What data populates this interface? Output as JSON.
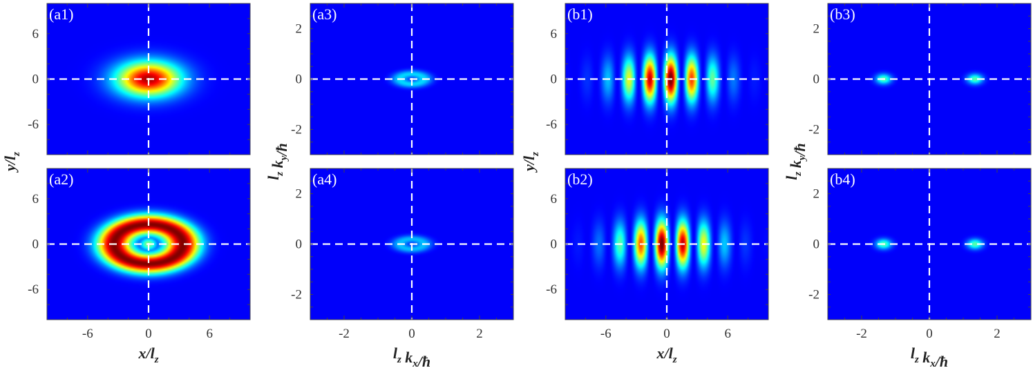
{
  "colors": {
    "background": "#00007f",
    "jet_low": "#0000c8",
    "jet_mid": "#00ffff",
    "jet_high": "#ff0000",
    "jet_peak": "#7f0000",
    "guide_line": "#ffffff"
  },
  "chart_data": [
    {
      "type": "heatmap",
      "label": "(a1)",
      "space": "position",
      "xlim": [
        -10,
        10
      ],
      "ylim": [
        -10,
        10
      ],
      "xticks": [
        "-6",
        "0",
        "6"
      ],
      "yticks": [
        "6",
        "0",
        "-6"
      ],
      "xlabel": "",
      "ylabel": "",
      "density": {
        "shape": "gaussian",
        "center": [
          0,
          0
        ],
        "sigma": [
          2.2,
          1.6
        ],
        "amplitude": 0.95
      }
    },
    {
      "type": "heatmap",
      "label": "(a2)",
      "space": "position",
      "xlim": [
        -10,
        10
      ],
      "ylim": [
        -10,
        10
      ],
      "xticks": [
        "-6",
        "0",
        "6"
      ],
      "yticks": [
        "6",
        "0",
        "-6"
      ],
      "xlabel": "x/l_z",
      "ylabel": "",
      "density": {
        "shape": "ring",
        "center": [
          0,
          0
        ],
        "radius": [
          3.4,
          2.6
        ],
        "width": 1.6,
        "amplitude": 1.0,
        "core": 0.45
      }
    },
    {
      "type": "heatmap",
      "label": "(a3)",
      "space": "momentum",
      "xlim": [
        -3,
        3
      ],
      "ylim": [
        -3,
        3
      ],
      "xticks": [
        "-2",
        "0",
        "2"
      ],
      "yticks": [
        "2",
        "0",
        "-2"
      ],
      "xlabel": "",
      "ylabel": "",
      "density": {
        "shape": "ring",
        "center": [
          0,
          0
        ],
        "radius": [
          0.35,
          0.2
        ],
        "width": 0.22,
        "amplitude": 0.25
      }
    },
    {
      "type": "heatmap",
      "label": "(a4)",
      "space": "momentum",
      "xlim": [
        -3,
        3
      ],
      "ylim": [
        -3,
        3
      ],
      "xticks": [
        "-2",
        "0",
        "2"
      ],
      "yticks": [
        "2",
        "0",
        "-2"
      ],
      "xlabel": "l_z k_x/ħ",
      "ylabel": "",
      "density": {
        "shape": "ring",
        "center": [
          0,
          0
        ],
        "radius": [
          0.35,
          0.2
        ],
        "width": 0.22,
        "amplitude": 0.22
      }
    },
    {
      "type": "heatmap",
      "label": "(b1)",
      "space": "position",
      "xlim": [
        -10,
        10
      ],
      "ylim": [
        -10,
        10
      ],
      "xticks": [
        "-6",
        "0",
        "6"
      ],
      "yticks": [
        "6",
        "0",
        "-6"
      ],
      "xlabel": "",
      "ylabel": "",
      "density": {
        "shape": "fringes",
        "center": [
          0,
          0
        ],
        "envelope": [
          3.3,
          2.1
        ],
        "period": 2.1,
        "phase": 0.4,
        "amplitude": 1.0
      }
    },
    {
      "type": "heatmap",
      "label": "(b2)",
      "space": "position",
      "xlim": [
        -10,
        10
      ],
      "ylim": [
        -10,
        10
      ],
      "xticks": [
        "-6",
        "0",
        "6"
      ],
      "yticks": [
        "6",
        "0",
        "-6"
      ],
      "xlabel": "x/l_z",
      "ylabel": "",
      "density": {
        "shape": "fringes",
        "center": [
          0,
          0
        ],
        "envelope": [
          3.3,
          2.1
        ],
        "period": 2.1,
        "phase": -0.5,
        "amplitude": 1.0
      }
    },
    {
      "type": "heatmap",
      "label": "(b3)",
      "space": "momentum",
      "xlim": [
        -3,
        3
      ],
      "ylim": [
        -3,
        3
      ],
      "xticks": [
        "-2",
        "0",
        "2"
      ],
      "yticks": [
        "2",
        "0",
        "-2"
      ],
      "xlabel": "",
      "ylabel": "",
      "density": {
        "shape": "peaks",
        "centers": [
          [
            -1.35,
            0
          ],
          [
            1.35,
            0
          ]
        ],
        "sigma": [
          0.16,
          0.14
        ],
        "amplitude": 0.4
      }
    },
    {
      "type": "heatmap",
      "label": "(b4)",
      "space": "momentum",
      "xlim": [
        -3,
        3
      ],
      "ylim": [
        -3,
        3
      ],
      "xticks": [
        "-2",
        "0",
        "2"
      ],
      "yticks": [
        "2",
        "0",
        "-2"
      ],
      "xlabel": "l_z k_x/ħ",
      "ylabel": "",
      "density": {
        "shape": "peaks",
        "centers": [
          [
            -1.35,
            0
          ],
          [
            1.35,
            0
          ]
        ],
        "sigma": [
          0.16,
          0.14
        ],
        "amplitude": 0.4
      }
    }
  ],
  "shared_labels": {
    "position_ylabel": "y/l_z",
    "momentum_ylabel": "l_z k_y/ħ"
  }
}
